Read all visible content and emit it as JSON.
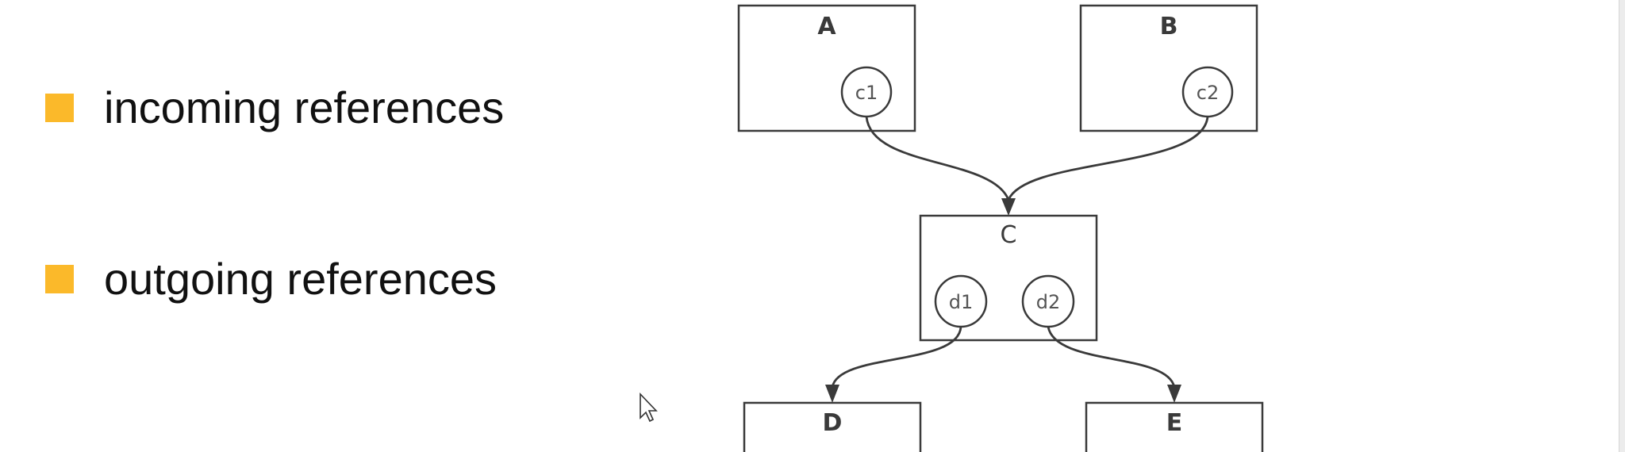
{
  "colors": {
    "bullet": "#FBB92A",
    "stroke": "#3A3A3A",
    "text": "#111111"
  },
  "bullets": [
    {
      "label": "incoming references",
      "icon": "square-bullet-icon"
    },
    {
      "label": "outgoing references",
      "icon": "square-bullet-icon"
    }
  ],
  "diagram": {
    "nodes": [
      {
        "id": "A",
        "label": "A",
        "ports": [
          "c1"
        ]
      },
      {
        "id": "B",
        "label": "B",
        "ports": [
          "c2"
        ]
      },
      {
        "id": "C",
        "label": "C",
        "ports": [
          "d1",
          "d2"
        ]
      },
      {
        "id": "D",
        "label": "D",
        "ports": []
      },
      {
        "id": "E",
        "label": "E",
        "ports": []
      }
    ],
    "edges": [
      {
        "from": "c1",
        "to": "C"
      },
      {
        "from": "c2",
        "to": "C"
      },
      {
        "from": "d1",
        "to": "D"
      },
      {
        "from": "d2",
        "to": "E"
      }
    ]
  },
  "cursor": {
    "icon": "mouse-pointer-icon"
  }
}
